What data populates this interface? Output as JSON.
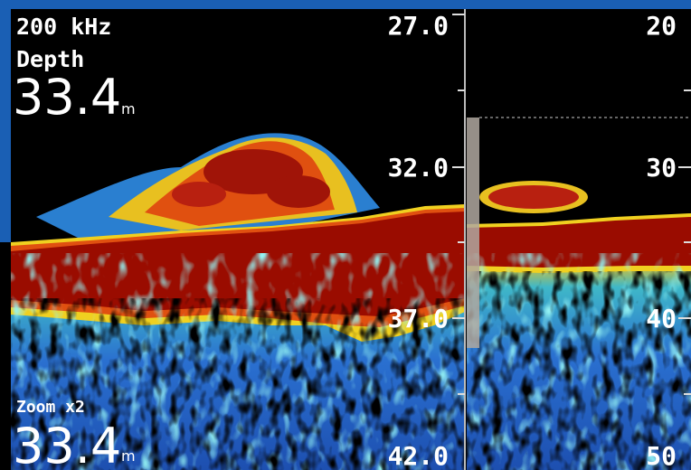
{
  "header": {
    "frequency": "200 kHz",
    "depth_label": "Depth",
    "depth_value": "33.4",
    "depth_unit": "m"
  },
  "zoom_panel": {
    "scale": [
      "27.0",
      "32.0",
      "37.0",
      "42.0"
    ],
    "label": "Zoom x2",
    "depth_value": "33.4",
    "depth_unit": "m"
  },
  "main_panel": {
    "scale": [
      "20",
      "30",
      "40",
      "50"
    ]
  }
}
